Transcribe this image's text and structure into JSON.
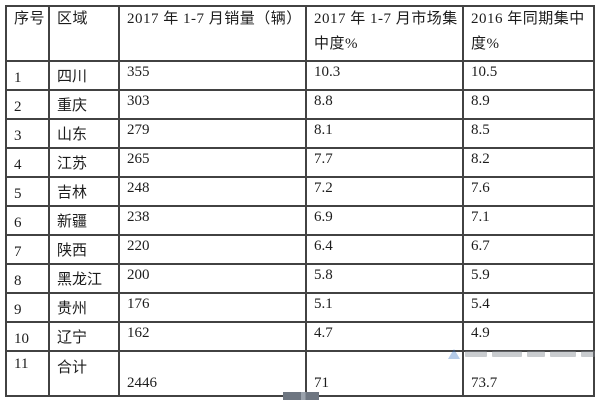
{
  "page": {
    "background_color": "#ffffff",
    "text_color": "#1c1c1c",
    "border_color": "#424242"
  },
  "table": {
    "columns": [
      {
        "key": "serial",
        "label": "序号"
      },
      {
        "key": "region",
        "label": "区域"
      },
      {
        "key": "sales",
        "label": "2017 年 1-7 月销量（辆）"
      },
      {
        "key": "share2017",
        "label": "2017 年 1-7 月市场集中度%"
      },
      {
        "key": "share2016",
        "label": "2016 年同期集中度%"
      }
    ],
    "rows": [
      {
        "serial": "1",
        "region": "四川",
        "sales": "355",
        "share2017": "10.3",
        "share2016": "10.5"
      },
      {
        "serial": "2",
        "region": "重庆",
        "sales": "303",
        "share2017": "8.8",
        "share2016": "8.9"
      },
      {
        "serial": "3",
        "region": "山东",
        "sales": "279",
        "share2017": "8.1",
        "share2016": "8.5"
      },
      {
        "serial": "4",
        "region": "江苏",
        "sales": "265",
        "share2017": "7.7",
        "share2016": "8.2"
      },
      {
        "serial": "5",
        "region": "吉林",
        "sales": "248",
        "share2017": "7.2",
        "share2016": "7.6"
      },
      {
        "serial": "6",
        "region": "新疆",
        "sales": "238",
        "share2017": "6.9",
        "share2016": "7.1"
      },
      {
        "serial": "7",
        "region": "陕西",
        "sales": "220",
        "share2017": "6.4",
        "share2016": "6.7"
      },
      {
        "serial": "8",
        "region": "黑龙江",
        "sales": "200",
        "share2017": "5.8",
        "share2016": "5.9"
      },
      {
        "serial": "9",
        "region": "贵州",
        "sales": "176",
        "share2017": "5.1",
        "share2016": "5.4"
      },
      {
        "serial": "10",
        "region": "辽宁",
        "sales": "162",
        "share2017": "4.7",
        "share2016": "4.9"
      },
      {
        "serial": "11",
        "region": "合计",
        "sales": "2446",
        "share2017": "71",
        "share2016": "73.7"
      }
    ]
  },
  "chart_data": {
    "type": "table",
    "title": "",
    "categories": [
      "四川",
      "重庆",
      "山东",
      "江苏",
      "吉林",
      "新疆",
      "陕西",
      "黑龙江",
      "贵州",
      "辽宁",
      "合计"
    ],
    "series": [
      {
        "name": "2017 年 1-7 月销量（辆）",
        "values": [
          355,
          303,
          279,
          265,
          248,
          238,
          220,
          200,
          176,
          162,
          2446
        ]
      },
      {
        "name": "2017 年 1-7 月市场集中度%",
        "values": [
          10.3,
          8.8,
          8.1,
          7.7,
          7.2,
          6.9,
          6.4,
          5.8,
          5.1,
          4.7,
          71
        ]
      },
      {
        "name": "2016 年同期集中度%",
        "values": [
          10.5,
          8.9,
          8.5,
          8.2,
          7.6,
          7.1,
          6.7,
          5.9,
          5.4,
          4.9,
          73.7
        ]
      }
    ]
  },
  "decorations": {
    "watermark_color": "#8a8f96",
    "watermark_accent": "#2e6fc1",
    "scrollbar_color": "#6e7681"
  }
}
